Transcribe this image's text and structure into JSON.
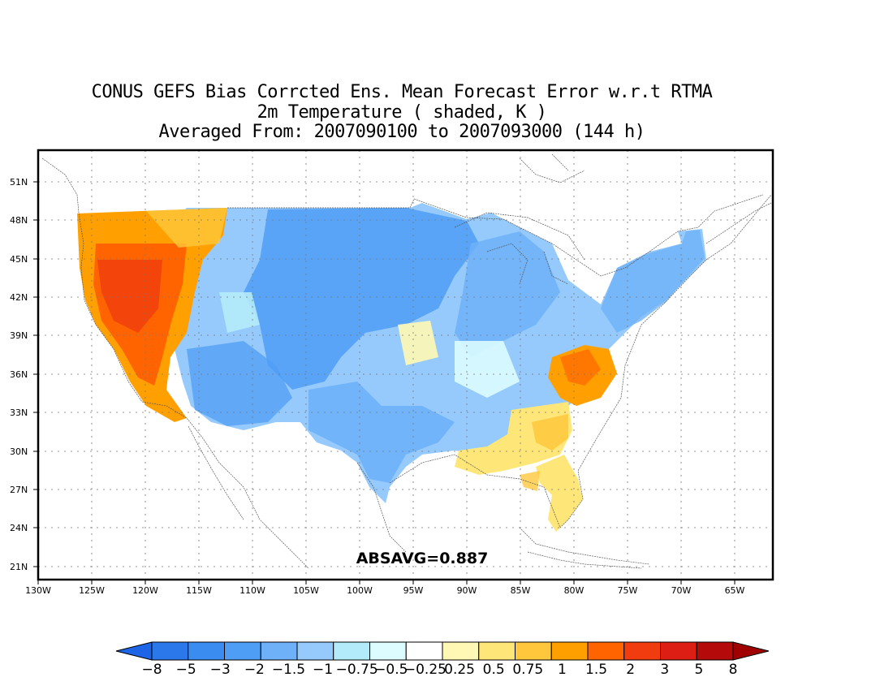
{
  "title": {
    "line1": "CONUS GEFS Bias Corrcted Ens. Mean Forecast Error w.r.t RTMA",
    "line2": "2m Temperature ( shaded, K )",
    "line3": "Averaged From: 2007090100 to 2007093000 (144 h)"
  },
  "annotation": "ABSAVG=0.887",
  "axes": {
    "x_ticks": [
      "130W",
      "125W",
      "120W",
      "115W",
      "110W",
      "105W",
      "100W",
      "95W",
      "90W",
      "85W",
      "80W",
      "75W",
      "70W",
      "65W"
    ],
    "y_ticks": [
      "51N",
      "48N",
      "45N",
      "42N",
      "39N",
      "36N",
      "33N",
      "30N",
      "27N",
      "24N",
      "21N"
    ],
    "lon_range": [
      -130,
      -62
    ],
    "lat_range": [
      19.5,
      52.5
    ],
    "grid": true
  },
  "colorbar": {
    "labels": [
      "-8",
      "-5",
      "-3",
      "-2",
      "-1.5",
      "-1",
      "-0.75",
      "-0.5",
      "-0.25",
      "0.25",
      "0.5",
      "0.75",
      "1",
      "1.5",
      "2",
      "3",
      "5",
      "8"
    ],
    "colors": [
      "#1e64e6",
      "#2b78eb",
      "#3a8cf0",
      "#4f9ef5",
      "#6eb1f9",
      "#96cafc",
      "#b4ebfa",
      "#dcfcff",
      "#ffffff",
      "#fff8b4",
      "#ffe678",
      "#ffc83c",
      "#ffa000",
      "#ff6400",
      "#f03c0f",
      "#dc1e14",
      "#b40a0a",
      "#a00000"
    ]
  },
  "map_regions": [
    {
      "name": "pacific-northwest-warm",
      "color": "#ffa000"
    },
    {
      "name": "california-nevada-warm",
      "color": "#ff6400"
    },
    {
      "name": "interior-west-cool",
      "color": "#96cafc"
    },
    {
      "name": "great-plains-cool",
      "color": "#4f9ef5"
    },
    {
      "name": "midwest-cool",
      "color": "#6eb1f9"
    },
    {
      "name": "texas-cool",
      "color": "#6eb1f9"
    },
    {
      "name": "northeast-cool",
      "color": "#96cafc"
    },
    {
      "name": "mid-atlantic-warm",
      "color": "#ffa000"
    },
    {
      "name": "southeast-warm",
      "color": "#ffe678"
    },
    {
      "name": "florida-warm",
      "color": "#ffe678"
    }
  ]
}
